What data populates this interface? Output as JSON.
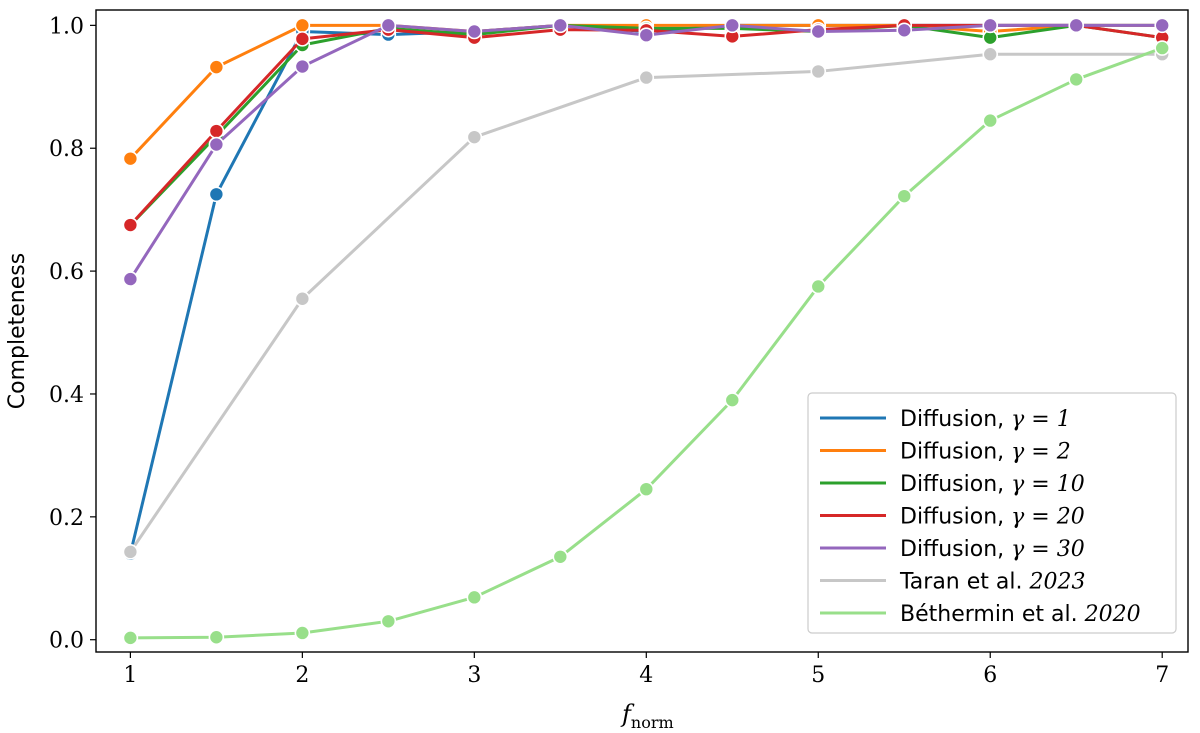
{
  "chart_data": {
    "type": "line",
    "xlabel": "f",
    "xlabel_sub": "norm",
    "ylabel": "Completeness",
    "xlim": [
      0.8,
      7.15
    ],
    "ylim": [
      -0.02,
      1.025
    ],
    "xticks": [
      1,
      2,
      3,
      4,
      5,
      6,
      7
    ],
    "xtick_labels": [
      "1",
      "2",
      "3",
      "4",
      "5",
      "6",
      "7"
    ],
    "yticks": [
      0.0,
      0.2,
      0.4,
      0.6,
      0.8,
      1.0
    ],
    "ytick_labels": [
      "0.0",
      "0.2",
      "0.4",
      "0.6",
      "0.8",
      "1.0"
    ],
    "grid": false,
    "legend_position": "lower-right",
    "x": [
      1,
      1.5,
      2,
      2.5,
      3,
      3.5,
      4,
      4.5,
      5,
      5.5,
      6,
      6.5,
      7
    ],
    "series": [
      {
        "name": "Diffusion, γ = 1",
        "name_text": "Diffusion, ",
        "name_math": "γ = 1",
        "color": "#1f77b4",
        "values": [
          0.14,
          0.725,
          0.99,
          0.985,
          0.99,
          1.0,
          0.99,
          1.0,
          1.0,
          1.0,
          1.0,
          1.0,
          1.0
        ]
      },
      {
        "name": "Diffusion, γ = 2",
        "name_text": "Diffusion, ",
        "name_math": "γ = 2",
        "color": "#ff7f0e",
        "values": [
          0.783,
          0.932,
          1.0,
          1.0,
          0.99,
          1.0,
          1.0,
          1.0,
          1.0,
          1.0,
          0.99,
          1.0,
          1.0
        ]
      },
      {
        "name": "Diffusion, γ = 10",
        "name_text": "Diffusion, ",
        "name_math": "γ = 10",
        "color": "#2ca02c",
        "values": [
          0.675,
          0.82,
          0.968,
          0.995,
          0.985,
          1.0,
          0.995,
          0.995,
          0.99,
          1.0,
          0.98,
          1.0,
          0.98
        ]
      },
      {
        "name": "Diffusion, γ = 20",
        "name_text": "Diffusion, ",
        "name_math": "γ = 20",
        "color": "#d62728",
        "values": [
          0.675,
          0.828,
          0.978,
          0.993,
          0.98,
          0.993,
          0.992,
          0.982,
          0.993,
          1.0,
          1.0,
          1.0,
          0.98
        ]
      },
      {
        "name": "Diffusion, γ = 30",
        "name_text": "Diffusion, ",
        "name_math": "γ = 30",
        "color": "#9467bd",
        "values": [
          0.587,
          0.806,
          0.933,
          1.0,
          0.99,
          1.0,
          0.984,
          1.0,
          0.99,
          0.992,
          1.0,
          1.0,
          1.0
        ]
      },
      {
        "name": "Taran et al. 2023",
        "name_text": "Taran et al. ",
        "name_math": "2023",
        "color": "#c7c7c7",
        "x": [
          1,
          2,
          3,
          4,
          5,
          6,
          7
        ],
        "values": [
          0.143,
          0.555,
          0.818,
          0.915,
          0.925,
          0.953,
          0.953
        ]
      },
      {
        "name": "Béthermin et al. 2020",
        "name_text": "Béthermin et al. ",
        "name_math": "2020",
        "color": "#98df8a",
        "values": [
          0.003,
          0.004,
          0.011,
          0.03,
          0.069,
          0.135,
          0.245,
          0.39,
          0.575,
          0.722,
          0.845,
          0.912,
          0.963
        ]
      }
    ]
  }
}
